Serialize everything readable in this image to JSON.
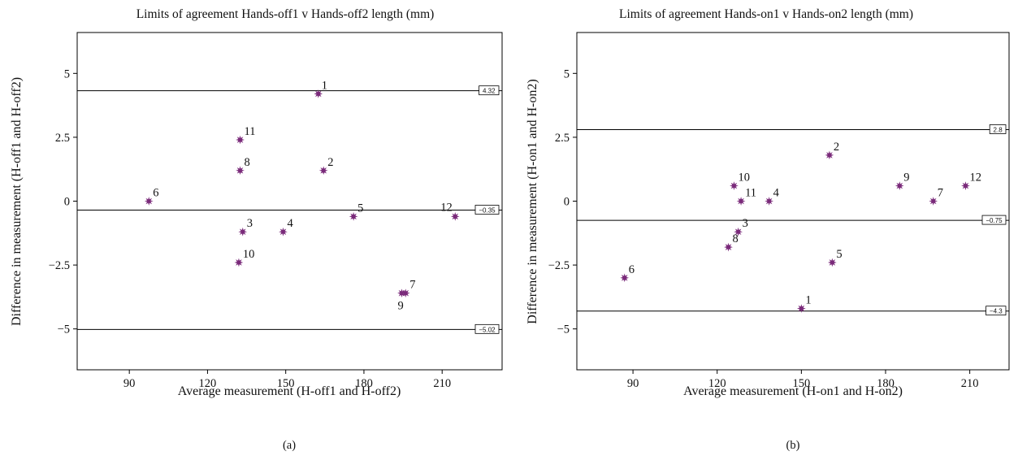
{
  "figure": {
    "panel_labels": [
      "(a)",
      "(b)"
    ]
  },
  "chart_data": [
    {
      "type": "scatter",
      "title": "Limits of agreement Hands-off1 v Hands-off2 length (mm)",
      "xlabel": "Average measurement (H-off1 and H-off2)",
      "ylabel": "Difference in measurement (H-off1 and H-off2)",
      "xlim": [
        70,
        233
      ],
      "ylim": [
        -6.6,
        6.6
      ],
      "xticks": [
        90,
        120,
        150,
        180,
        210
      ],
      "yticks": [
        -5,
        -2.5,
        0,
        2.5,
        5
      ],
      "ytick_labels": [
        "−5",
        "−2.5",
        "0",
        "2.5",
        "5"
      ],
      "grid": false,
      "marker_color": "#7a2a7a",
      "points": [
        {
          "label": "1",
          "x": 162.5,
          "y": 4.2
        },
        {
          "label": "2",
          "x": 164.5,
          "y": 1.2
        },
        {
          "label": "3",
          "x": 133.5,
          "y": -1.2
        },
        {
          "label": "4",
          "x": 149,
          "y": -1.2
        },
        {
          "label": "5",
          "x": 176,
          "y": -0.6
        },
        {
          "label": "6",
          "x": 97.5,
          "y": 0
        },
        {
          "label": "7",
          "x": 196,
          "y": -3.6
        },
        {
          "label": "8",
          "x": 132.5,
          "y": 1.2
        },
        {
          "label": "9",
          "x": 194.5,
          "y": -3.6
        },
        {
          "label": "10",
          "x": 132,
          "y": -2.4
        },
        {
          "label": "11",
          "x": 132.5,
          "y": 2.4
        },
        {
          "label": "12",
          "x": 215,
          "y": -0.6
        }
      ],
      "hlines": [
        {
          "value": 4.32,
          "label": "4.32"
        },
        {
          "value": -0.35,
          "label": "−0.35"
        },
        {
          "value": -5.02,
          "label": "−5.02"
        }
      ]
    },
    {
      "type": "scatter",
      "title": "Limits of agreement Hands-on1 v Hands-on2 length (mm)",
      "xlabel": "Average measurement (H-on1 and H-on2)",
      "ylabel": "Difference in measurement (H-on1 and H-on2)",
      "xlim": [
        70,
        224
      ],
      "ylim": [
        -6.6,
        6.6
      ],
      "xticks": [
        90,
        120,
        150,
        180,
        210
      ],
      "yticks": [
        -5,
        -2.5,
        0,
        2.5,
        5
      ],
      "ytick_labels": [
        "−5",
        "−2.5",
        "0",
        "2.5",
        "5"
      ],
      "grid": false,
      "marker_color": "#7a2a7a",
      "points": [
        {
          "label": "1",
          "x": 150,
          "y": -4.2
        },
        {
          "label": "2",
          "x": 160,
          "y": 1.8
        },
        {
          "label": "3",
          "x": 127.5,
          "y": -1.2
        },
        {
          "label": "4",
          "x": 138.5,
          "y": 0
        },
        {
          "label": "5",
          "x": 161,
          "y": -2.4
        },
        {
          "label": "6",
          "x": 87,
          "y": -3
        },
        {
          "label": "7",
          "x": 197,
          "y": 0
        },
        {
          "label": "8",
          "x": 124,
          "y": -1.8
        },
        {
          "label": "9",
          "x": 185,
          "y": 0.6
        },
        {
          "label": "10",
          "x": 126,
          "y": 0.6
        },
        {
          "label": "11",
          "x": 128.5,
          "y": 0
        },
        {
          "label": "12",
          "x": 208.5,
          "y": 0.6
        }
      ],
      "hlines": [
        {
          "value": 2.8,
          "label": "2.8"
        },
        {
          "value": -0.75,
          "label": "−0.75"
        },
        {
          "value": -4.3,
          "label": "−4.3"
        }
      ]
    }
  ]
}
